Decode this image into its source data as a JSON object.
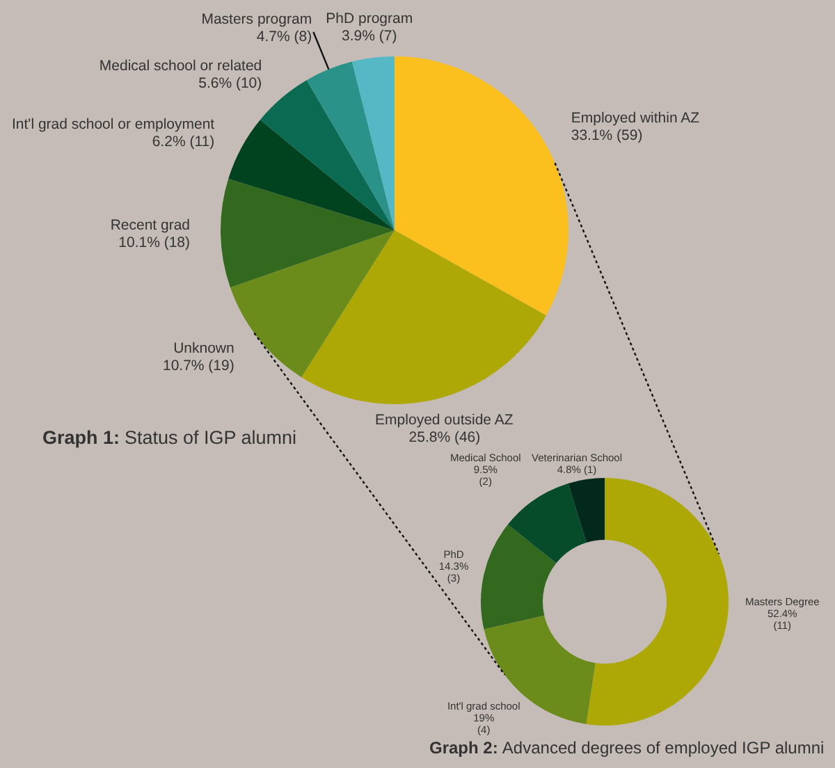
{
  "chart_data": [
    {
      "type": "pie",
      "title": "Graph 1: Status of IGP alumni",
      "categories": [
        "Employed within AZ",
        "Employed outside AZ",
        "Unknown",
        "Recent grad",
        "Int'l grad school or employment",
        "Medical school or related",
        "Masters program",
        "PhD program"
      ],
      "values": [
        59,
        46,
        19,
        18,
        11,
        10,
        8,
        7
      ],
      "value_labels": [
        "33.1% (59)",
        "25.8% (46)",
        "10.7% (19)",
        "10.1% (18)",
        "6.2% (11)",
        "5.6% (10)",
        "4.7% (8)",
        "3.9% (7)"
      ],
      "colors": [
        "#fbbf1e",
        "#ada806",
        "#6b8b1a",
        "#33691f",
        "#02431f",
        "#0b6a52",
        "#2a9288",
        "#56b8c4"
      ]
    },
    {
      "type": "donut",
      "title": "Graph 2: Advanced degrees of employed IGP alumni",
      "categories": [
        "Masters Degree",
        "Int'l grad school",
        "PhD",
        "Medical School",
        "Veterinarian School"
      ],
      "values": [
        11,
        4,
        3,
        2,
        1
      ],
      "value_labels": [
        "52.4%\n(11)",
        "19%\n(4)",
        "14.3%\n(3)",
        "9.5%\n(2)",
        "4.8% (1)"
      ],
      "colors": [
        "#ada806",
        "#6b8b1a",
        "#33691f",
        "#074c2a",
        "#02291b"
      ]
    }
  ]
}
